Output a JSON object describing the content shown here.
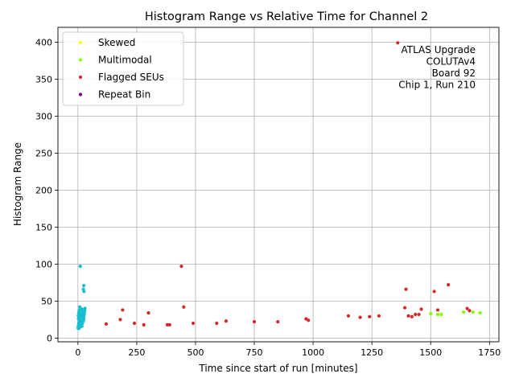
{
  "chart_data": {
    "type": "scatter",
    "title": "Histogram Range vs Relative Time for Channel 2",
    "xlabel": "Time since start of run [minutes]",
    "ylabel": "Histogram Range",
    "xlim": [
      -85,
      1790
    ],
    "ylim": [
      -5,
      420
    ],
    "xticks": [
      0,
      250,
      500,
      750,
      1000,
      1250,
      1500,
      1750
    ],
    "yticks": [
      0,
      50,
      100,
      150,
      200,
      250,
      300,
      350,
      400
    ],
    "grid": true,
    "legend_position": "top-left",
    "annotation": [
      "ATLAS Upgrade",
      "COLUTAv4",
      "Board 92",
      "Chip 1, Run 210"
    ],
    "series": [
      {
        "name": "",
        "color": "#17becf",
        "points": [
          [
            1,
            14
          ],
          [
            2,
            16
          ],
          [
            3,
            18
          ],
          [
            4,
            20
          ],
          [
            5,
            22
          ],
          [
            6,
            24
          ],
          [
            2,
            26
          ],
          [
            3,
            17
          ],
          [
            5,
            15
          ],
          [
            7,
            19
          ],
          [
            8,
            21
          ],
          [
            9,
            23
          ],
          [
            10,
            25
          ],
          [
            11,
            27
          ],
          [
            12,
            29
          ],
          [
            13,
            31
          ],
          [
            14,
            33
          ],
          [
            15,
            35
          ],
          [
            16,
            37
          ],
          [
            17,
            39
          ],
          [
            18,
            27
          ],
          [
            19,
            29
          ],
          [
            20,
            31
          ],
          [
            21,
            33
          ],
          [
            22,
            35
          ],
          [
            23,
            37
          ],
          [
            24,
            28
          ],
          [
            25,
            30
          ],
          [
            26,
            32
          ],
          [
            27,
            34
          ],
          [
            28,
            36
          ],
          [
            29,
            38
          ],
          [
            30,
            40
          ],
          [
            6,
            38
          ],
          [
            8,
            42
          ],
          [
            10,
            36
          ],
          [
            12,
            40
          ],
          [
            4,
            35
          ],
          [
            3,
            32
          ],
          [
            2,
            30
          ],
          [
            7,
            28
          ],
          [
            9,
            25
          ],
          [
            11,
            22
          ],
          [
            13,
            20
          ],
          [
            15,
            18
          ],
          [
            17,
            16
          ],
          [
            19,
            20
          ],
          [
            21,
            22
          ],
          [
            23,
            24
          ],
          [
            25,
            26
          ],
          [
            2,
            13
          ],
          [
            4,
            13
          ],
          [
            6,
            14
          ],
          [
            8,
            15
          ],
          [
            10,
            17
          ],
          [
            12,
            18
          ],
          [
            14,
            21
          ],
          [
            16,
            23
          ],
          [
            18,
            25
          ],
          [
            20,
            28
          ],
          [
            10,
            97
          ],
          [
            25,
            71
          ],
          [
            23,
            66
          ],
          [
            26,
            63
          ]
        ]
      },
      {
        "name": "Skewed",
        "color": "#ffff00",
        "points": [
          [
            25,
            399
          ]
        ]
      },
      {
        "name": "Multimodal",
        "color": "#7fff00",
        "points": [
          [
            1500,
            33
          ],
          [
            1530,
            32
          ],
          [
            1545,
            32
          ],
          [
            1640,
            35
          ],
          [
            1680,
            35
          ],
          [
            1710,
            34
          ]
        ]
      },
      {
        "name": "Flagged SEUs",
        "color": "#d62728",
        "points": [
          [
            120,
            19
          ],
          [
            180,
            25
          ],
          [
            190,
            38
          ],
          [
            240,
            20
          ],
          [
            280,
            18
          ],
          [
            300,
            34
          ],
          [
            380,
            18
          ],
          [
            390,
            18
          ],
          [
            440,
            97
          ],
          [
            450,
            42
          ],
          [
            490,
            20
          ],
          [
            590,
            20
          ],
          [
            630,
            23
          ],
          [
            750,
            22
          ],
          [
            850,
            22
          ],
          [
            970,
            26
          ],
          [
            980,
            24
          ],
          [
            1150,
            30
          ],
          [
            1200,
            28
          ],
          [
            1240,
            29
          ],
          [
            1280,
            30
          ],
          [
            1360,
            399
          ],
          [
            1390,
            41
          ],
          [
            1395,
            66
          ],
          [
            1405,
            30
          ],
          [
            1420,
            29
          ],
          [
            1435,
            32
          ],
          [
            1450,
            32
          ],
          [
            1460,
            39
          ],
          [
            1515,
            63
          ],
          [
            1530,
            38
          ],
          [
            1575,
            72
          ],
          [
            1655,
            40
          ],
          [
            1665,
            37
          ]
        ]
      },
      {
        "name": "Repeat Bin",
        "color": "#800080",
        "points": []
      }
    ]
  }
}
